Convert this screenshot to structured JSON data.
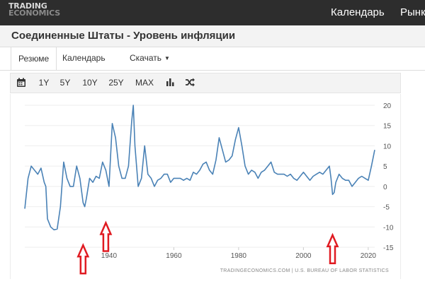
{
  "brand": {
    "line1": "TRADING",
    "line2": "ECONOMICS"
  },
  "nav": {
    "calendar": "Календарь",
    "markets": "Рынк"
  },
  "page": {
    "title": "Соединенные Штаты - Уровень инфляции"
  },
  "tabs": {
    "summary": "Резюме",
    "calendar": "Календарь",
    "download": "Скачать"
  },
  "toolbar": {
    "calendar_icon": "calendar-icon",
    "r1": "1Y",
    "r5": "5Y",
    "r10": "10Y",
    "r25": "25Y",
    "rmax": "MAX",
    "bar_icon": "bar-chart-icon",
    "shuffle_icon": "shuffle-icon"
  },
  "chart_data": {
    "type": "line",
    "xlim": [
      1914,
      2022
    ],
    "ylim": [
      -15,
      20
    ],
    "x_ticks": [
      "1940",
      "1960",
      "1980",
      "2000",
      "2020"
    ],
    "y_ticks": [
      "20",
      "15",
      "10",
      "5",
      "0",
      "-5",
      "-10",
      "-15"
    ],
    "grid": true,
    "color": "#4a82b6",
    "source": "TRADINGECONOMICS.COM | U.S. BUREAU OF LABOR STATISTICS",
    "annotation_color": "#e01b22",
    "series": [
      {
        "x": [
          1914,
          1915,
          1916,
          1917,
          1918,
          1919,
          1920,
          1920.5,
          1921,
          1922,
          1923,
          1924,
          1925,
          1926,
          1927,
          1928,
          1929,
          1930,
          1931,
          1932,
          1932.5,
          1933,
          1934,
          1935,
          1936,
          1937,
          1938,
          1939,
          1940,
          1941,
          1942,
          1943,
          1944,
          1945,
          1946,
          1947,
          1947.5,
          1948,
          1949,
          1950,
          1951,
          1952,
          1953,
          1954,
          1955,
          1956,
          1957,
          1958,
          1959,
          1960,
          1961,
          1962,
          1963,
          1964,
          1965,
          1966,
          1967,
          1968,
          1969,
          1970,
          1971,
          1972,
          1973,
          1974,
          1975,
          1976,
          1977,
          1978,
          1979,
          1980,
          1981,
          1982,
          1983,
          1984,
          1985,
          1986,
          1987,
          1988,
          1989,
          1990,
          1991,
          1992,
          1993,
          1994,
          1995,
          1996,
          1997,
          1998,
          1999,
          2000,
          2001,
          2002,
          2003,
          2004,
          2005,
          2006,
          2007,
          2008,
          2008.5,
          2009,
          2009.5,
          2010,
          2011,
          2012,
          2013,
          2014,
          2015,
          2016,
          2017,
          2018,
          2019,
          2020,
          2021,
          2021.5,
          2022
        ],
        "y": [
          -5.5,
          2,
          5,
          4,
          3,
          4.5,
          1,
          0,
          -8,
          -10,
          -10.7,
          -10.5,
          -5,
          6,
          2,
          0,
          0,
          5,
          2,
          -4,
          -5,
          -3,
          2,
          1,
          2.5,
          2,
          6,
          4,
          0,
          15.5,
          12,
          5,
          2,
          2,
          5,
          16,
          20,
          10,
          0,
          2,
          10,
          3,
          2,
          0,
          1.5,
          2,
          3,
          3,
          1,
          2,
          2,
          2,
          1.5,
          2,
          1.5,
          3.5,
          3,
          4,
          5.5,
          6,
          4,
          3,
          6.5,
          12,
          9,
          6,
          6.5,
          7.5,
          11.5,
          14.5,
          10,
          5,
          3,
          4,
          3.5,
          2,
          3.5,
          4,
          5,
          6,
          3.5,
          3,
          3,
          3,
          2.5,
          3,
          2,
          1.5,
          2.5,
          3.5,
          2.5,
          1.5,
          2.5,
          3,
          3.5,
          3,
          4,
          5,
          2,
          -2,
          -1.5,
          1,
          3,
          2,
          1.5,
          1.5,
          0,
          1,
          2,
          2.5,
          2,
          1.5,
          5,
          7,
          9
        ]
      }
    ],
    "arrows": [
      {
        "x": 1932,
        "y": -14.5
      },
      {
        "x": 1939,
        "y": -9
      },
      {
        "x": 2009,
        "y": -12
      }
    ]
  }
}
